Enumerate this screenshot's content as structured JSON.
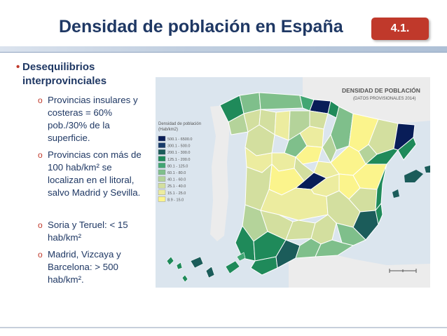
{
  "slide": {
    "title": "Densidad de población en España",
    "section_number": "4.1."
  },
  "content": {
    "main_bullet": "Desequilibrios interprovinciales",
    "sub_bullets": [
      "Provincias insulares y costeras = 60% pob./30% de la superficie.",
      "Provincias con más de 100 hab/km² se localizan en el litoral, salvo Madrid y Sevilla.",
      "Soria y Teruel: < 15 hab/km²",
      "Madrid, Vizcaya y Barcelona: > 500 hab/km²."
    ]
  },
  "map": {
    "title": "DENSIDAD DE POBLACIÓN",
    "subtitle": "(DATOS PROVISIONALES 2014)",
    "legend_title": "Densidad de población (Hab/km2)",
    "legend": [
      {
        "label": "500.1 - 6500.0",
        "color": "#081d58"
      },
      {
        "label": "300.1 - 500.0",
        "color": "#173b6b"
      },
      {
        "label": "200.1 - 300.0",
        "color": "#1b5c5a"
      },
      {
        "label": "125.1 - 200.0",
        "color": "#1f8a5a"
      },
      {
        "label": "80.1 - 125.0",
        "color": "#41a673"
      },
      {
        "label": "60.1 - 80.0",
        "color": "#7fbf8b"
      },
      {
        "label": "40.1 - 60.0",
        "color": "#b4d39a"
      },
      {
        "label": "25.1 - 40.0",
        "color": "#d3df9f"
      },
      {
        "label": "15.1 - 25.0",
        "color": "#ecec9f"
      },
      {
        "label": "8.9 - 15.0",
        "color": "#fbf48c"
      }
    ],
    "colors": {
      "sea": "#dbe5ee",
      "neighbor_land": "#ececec",
      "border": "#ffffff"
    }
  },
  "theme": {
    "title_color": "#1f3864",
    "accent": "#c0392b"
  }
}
